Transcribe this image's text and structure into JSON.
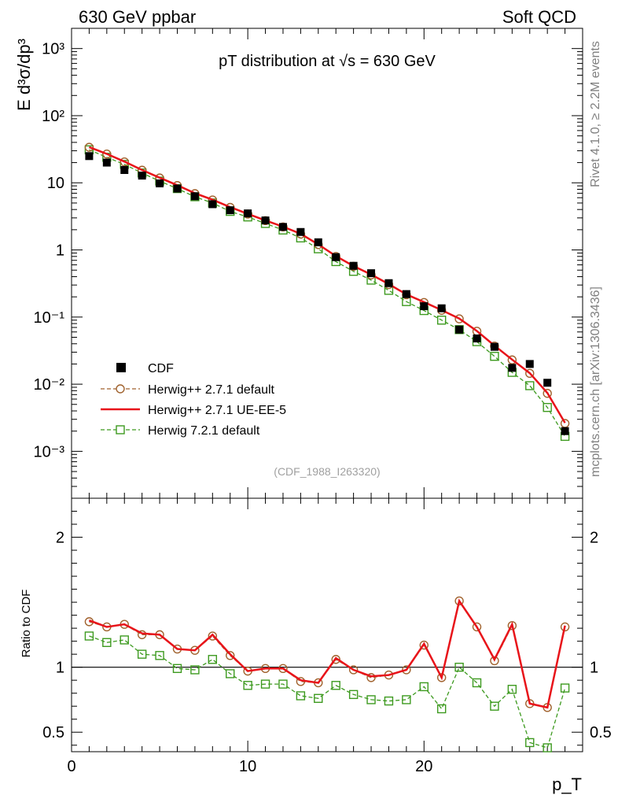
{
  "header": {
    "left": "630 GeV ppbar",
    "right": "Soft QCD"
  },
  "side_texts": {
    "rivet": "Rivet 4.1.0, ≥ 2.2M events",
    "mcplots": "mcplots.cern.ch [arXiv:1306.3436]"
  },
  "chart_data": [
    {
      "type": "scatter",
      "title": "pT distribution at √s = 630 GeV",
      "ylabel": "E  d³σ/dp³",
      "xlabel": "p_T",
      "yscale": "log",
      "ylim": [
        0.0002,
        2000
      ],
      "xlim": [
        0,
        29
      ],
      "watermark": "(CDF_1988_I263320)",
      "x_ticks": [
        "0",
        "10",
        "20"
      ],
      "y_ticks": [
        "10⁻³",
        "10⁻²",
        "10⁻¹",
        "1",
        "10",
        "10²",
        "10³"
      ],
      "legend_position": "lower-left",
      "x": [
        1,
        2,
        3,
        4,
        5,
        6,
        7,
        8,
        9,
        10,
        11,
        12,
        13,
        14,
        15,
        16,
        17,
        18,
        19,
        20,
        21,
        22,
        23,
        24,
        25,
        26,
        27,
        28
      ],
      "series": [
        {
          "name": "CDF",
          "style": "data",
          "color": "#000000",
          "values": [
            25.0,
            20.0,
            15.5,
            12.8,
            9.8,
            8.2,
            6.3,
            4.8,
            3.9,
            3.5,
            2.75,
            2.2,
            1.85,
            1.3,
            0.78,
            0.58,
            0.45,
            0.32,
            0.22,
            0.145,
            0.135,
            0.065,
            0.048,
            0.036,
            0.0175,
            0.02,
            0.0105,
            0.002
          ]
        },
        {
          "name": "Herwig++ 2.7.1 default",
          "style": "circle-dashed",
          "color": "#a0622d",
          "values": [
            33.8,
            26.8,
            20.5,
            15.4,
            11.8,
            9.1,
            6.9,
            5.55,
            4.3,
            3.42,
            2.73,
            2.2,
            1.72,
            1.2,
            0.8,
            0.57,
            0.425,
            0.305,
            0.215,
            0.165,
            0.126,
            0.094,
            0.0615,
            0.037,
            0.023,
            0.0145,
            0.0073,
            0.0026
          ]
        },
        {
          "name": "Herwig++ 2.7.1 UE-EE-5",
          "style": "line",
          "color": "#e8141a",
          "values": [
            34.0,
            27.0,
            20.7,
            15.5,
            11.9,
            9.2,
            7.0,
            5.6,
            4.35,
            3.45,
            2.75,
            2.22,
            1.74,
            1.21,
            0.81,
            0.575,
            0.43,
            0.31,
            0.218,
            0.167,
            0.127,
            0.095,
            0.062,
            0.0375,
            0.0233,
            0.0146,
            0.0074,
            0.00265
          ]
        },
        {
          "name": "Herwig 7.2.1 default",
          "style": "square-dashed",
          "color": "#3d9a1f",
          "values": [
            31.0,
            24.0,
            18.8,
            14.0,
            10.6,
            8.2,
            6.2,
            5.0,
            3.75,
            3.1,
            2.48,
            1.98,
            1.51,
            1.04,
            0.67,
            0.48,
            0.355,
            0.25,
            0.17,
            0.125,
            0.09,
            0.065,
            0.043,
            0.026,
            0.015,
            0.0095,
            0.0045,
            0.00167
          ]
        }
      ]
    },
    {
      "type": "line",
      "ylabel": "Ratio to CDF",
      "xlabel": "p_T",
      "ylim": [
        0.35,
        2.3
      ],
      "xlim": [
        0,
        29
      ],
      "x_ticks": [
        "0",
        "10",
        "20"
      ],
      "y_ticks": [
        "0.5",
        "1",
        "2"
      ],
      "reference_line": 1,
      "x": [
        1,
        2,
        3,
        4,
        5,
        6,
        7,
        8,
        9,
        10,
        11,
        12,
        13,
        14,
        15,
        16,
        17,
        18,
        19,
        20,
        21,
        22,
        23,
        24,
        25,
        26,
        27,
        28
      ],
      "series": [
        {
          "name": "Herwig++ 2.7.1 default",
          "style": "circle-dashed",
          "color": "#a0622d",
          "values": [
            1.35,
            1.31,
            1.33,
            1.25,
            1.25,
            1.14,
            1.13,
            1.24,
            1.09,
            0.97,
            0.99,
            0.99,
            0.89,
            0.88,
            1.06,
            0.98,
            0.92,
            0.94,
            0.98,
            1.17,
            0.92,
            1.51,
            1.31,
            1.05,
            1.32,
            0.72,
            0.69,
            1.31
          ]
        },
        {
          "name": "Herwig++ 2.7.1 UE-EE-5",
          "style": "line",
          "color": "#e8141a",
          "values": [
            1.36,
            1.31,
            1.33,
            1.26,
            1.25,
            1.14,
            1.13,
            1.25,
            1.1,
            0.97,
            0.99,
            0.99,
            0.9,
            0.88,
            1.07,
            0.98,
            0.93,
            0.94,
            0.98,
            1.18,
            0.92,
            1.51,
            1.31,
            1.06,
            1.33,
            0.72,
            0.69,
            1.32
          ]
        },
        {
          "name": "Herwig 7.2.1 default",
          "style": "square-dashed",
          "color": "#3d9a1f",
          "values": [
            1.24,
            1.19,
            1.21,
            1.1,
            1.09,
            0.99,
            0.98,
            1.06,
            0.95,
            0.86,
            0.87,
            0.87,
            0.78,
            0.76,
            0.86,
            0.79,
            0.75,
            0.74,
            0.75,
            0.85,
            0.68,
            1.0,
            0.88,
            0.7,
            0.83,
            0.42,
            0.38,
            0.84
          ]
        }
      ]
    }
  ]
}
